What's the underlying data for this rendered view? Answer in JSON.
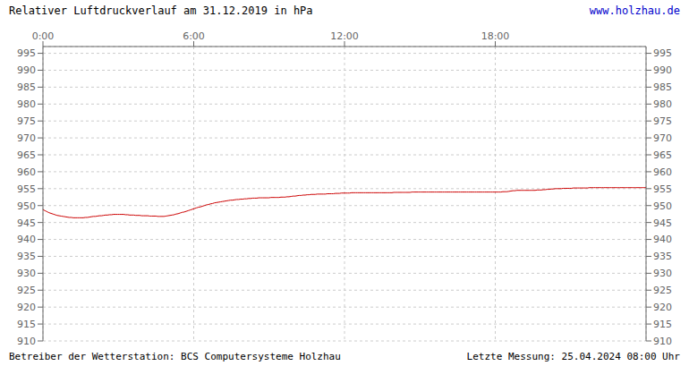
{
  "chart_data": {
    "type": "line",
    "title": "Relativer Luftdruckverlauf am 31.12.2019 in hPa",
    "annotations": [
      {
        "text": "www.holzhau.de",
        "color": "#0000cc"
      },
      {
        "text": "Betreiber der Wetterstation: BCS Computersysteme Holzhau"
      },
      {
        "text": "Letzte Messung: 25.04.2024 08:00 Uhr"
      }
    ],
    "color": "#cc0000",
    "grid": true,
    "xlim": [
      0,
      1440
    ],
    "xticks": [
      {
        "value": 0,
        "label": "0:00"
      },
      {
        "value": 360,
        "label": "6:00"
      },
      {
        "value": 720,
        "label": "12:00"
      },
      {
        "value": 1080,
        "label": "18:00"
      }
    ],
    "ylim": [
      910,
      997
    ],
    "yticks": [
      910,
      915,
      920,
      925,
      930,
      935,
      940,
      945,
      950,
      955,
      960,
      965,
      970,
      975,
      980,
      985,
      990,
      995
    ],
    "y2lim": [
      910,
      997
    ],
    "y2ticks": [
      910,
      915,
      920,
      925,
      930,
      935,
      940,
      945,
      950,
      955,
      960,
      965,
      970,
      975,
      980,
      985,
      990,
      995
    ],
    "x": [
      0,
      4.82,
      9.63,
      14.45,
      19.26,
      24.08,
      28.9,
      33.71,
      38.53,
      43.34,
      48.16,
      52.98,
      57.79,
      62.61,
      67.42,
      72.24,
      77.06,
      81.87,
      86.69,
      91.51,
      96.32,
      101.14,
      105.95,
      110.77,
      115.59,
      120.4,
      125.22,
      130.03,
      134.85,
      139.67,
      144.48,
      149.3,
      154.11,
      158.93,
      163.75,
      168.56,
      173.38,
      178.19,
      183.01,
      187.83,
      192.64,
      197.46,
      202.27,
      207.09,
      211.91,
      216.72,
      221.54,
      226.35,
      231.17,
      235.99,
      240.8,
      245.62,
      250.43,
      255.25,
      260.07,
      264.88,
      269.7,
      274.52,
      279.33,
      284.15,
      288.96,
      293.78,
      298.6,
      303.41,
      308.23,
      313.04,
      317.86,
      322.68,
      327.49,
      332.31,
      337.12,
      341.94,
      346.76,
      351.57,
      356.39,
      361.2,
      366.02,
      370.84,
      375.65,
      380.47,
      385.28,
      390.1,
      394.92,
      399.73,
      404.55,
      409.36,
      414.18,
      419,
      423.81,
      428.63,
      433.44,
      438.26,
      443.08,
      447.89,
      452.71,
      457.53,
      462.34,
      467.16,
      471.97,
      476.79,
      481.61,
      486.42,
      491.24,
      496.05,
      500.87,
      505.69,
      510.5,
      515.32,
      520.13,
      524.95,
      529.77,
      534.58,
      539.4,
      544.21,
      549.03,
      553.85,
      558.66,
      563.48,
      568.29,
      573.11,
      577.93,
      582.74,
      587.56,
      592.37,
      597.19,
      602.01,
      606.82,
      611.64,
      616.45,
      621.27,
      626.09,
      630.9,
      635.72,
      640.54,
      645.35,
      650.17,
      654.98,
      659.8,
      664.62,
      669.43,
      674.25,
      679.06,
      683.88,
      688.7,
      693.51,
      698.33,
      703.14,
      707.96,
      712.78,
      717.59,
      722.41,
      727.22,
      732.04,
      736.86,
      741.67,
      746.49,
      751.3,
      756.12,
      760.94,
      765.75,
      770.57,
      775.38,
      780.2,
      785.02,
      789.83,
      794.65,
      799.46,
      804.28,
      809.1,
      813.91,
      818.73,
      823.55,
      828.36,
      833.18,
      837.99,
      842.81,
      847.63,
      852.44,
      857.26,
      862.07,
      866.89,
      871.71,
      876.52,
      881.34,
      886.15,
      890.97,
      895.79,
      900.6,
      905.42,
      910.23,
      915.05,
      919.87,
      924.68,
      929.5,
      934.31,
      939.13,
      943.95,
      948.76,
      953.58,
      958.39,
      963.21,
      968.03,
      972.84,
      977.66,
      982.47,
      987.29,
      992.11,
      996.92,
      1001.74,
      1006.56,
      1011.37,
      1016.19,
      1021,
      1025.82,
      1030.64,
      1035.45,
      1040.27,
      1045.08,
      1049.9,
      1054.72,
      1059.53,
      1064.35,
      1069.16,
      1073.98,
      1078.8,
      1083.61,
      1088.43,
      1093.24,
      1098.06,
      1102.88,
      1107.69,
      1112.51,
      1117.32,
      1122.14,
      1126.96,
      1131.77,
      1136.59,
      1141.4,
      1146.22,
      1151.04,
      1155.85,
      1160.67,
      1165.48,
      1170.3,
      1175.12,
      1179.93,
      1184.75,
      1189.57,
      1194.38,
      1199.2,
      1204.01,
      1208.83,
      1213.65,
      1218.46,
      1223.28,
      1228.09,
      1232.91,
      1237.73,
      1242.54,
      1247.36,
      1252.17,
      1256.99,
      1261.81,
      1266.62,
      1271.44,
      1276.25,
      1281.07,
      1285.89,
      1290.7,
      1295.52,
      1300.33,
      1305.15,
      1309.97,
      1314.78,
      1319.6,
      1324.41,
      1329.23,
      1334.05,
      1338.86,
      1343.68,
      1348.49,
      1353.31,
      1358.13,
      1362.94,
      1367.76,
      1372.58,
      1377.39,
      1382.21,
      1387.02,
      1391.84,
      1396.66,
      1401.47,
      1406.29,
      1411.1,
      1415.92,
      1420.74,
      1425.55,
      1430.37,
      1435.18,
      1440
    ],
    "values": [
      948.8,
      948.5,
      948.2,
      947.9,
      947.7,
      947.5,
      947.3,
      947.1,
      947.0,
      946.9,
      946.8,
      946.7,
      946.6,
      946.5,
      946.5,
      946.4,
      946.4,
      946.4,
      946.4,
      946.4,
      946.4,
      946.5,
      946.5,
      946.6,
      946.7,
      946.8,
      946.8,
      946.9,
      947.0,
      947.0,
      947.1,
      947.2,
      947.2,
      947.3,
      947.3,
      947.4,
      947.4,
      947.4,
      947.4,
      947.4,
      947.4,
      947.3,
      947.3,
      947.2,
      947.2,
      947.2,
      947.1,
      947.1,
      947.1,
      947.0,
      947.0,
      947.0,
      947.0,
      946.9,
      946.9,
      946.9,
      946.9,
      946.8,
      946.8,
      946.8,
      946.8,
      946.9,
      947.0,
      947.1,
      947.2,
      947.3,
      947.5,
      947.6,
      947.8,
      948.0,
      948.1,
      948.3,
      948.5,
      948.7,
      948.9,
      949.1,
      949.3,
      949.5,
      949.6,
      949.8,
      950.0,
      950.2,
      950.3,
      950.5,
      950.6,
      950.8,
      950.9,
      951.0,
      951.1,
      951.2,
      951.3,
      951.4,
      951.5,
      951.6,
      951.6,
      951.7,
      951.8,
      951.8,
      951.9,
      951.9,
      952.0,
      952.0,
      952.1,
      952.1,
      952.2,
      952.2,
      952.2,
      952.3,
      952.3,
      952.3,
      952.3,
      952.3,
      952.3,
      952.4,
      952.4,
      952.4,
      952.4,
      952.4,
      952.5,
      952.5,
      952.5,
      952.6,
      952.6,
      952.7,
      952.8,
      952.8,
      952.9,
      953.0,
      953.0,
      953.1,
      953.1,
      953.2,
      953.2,
      953.3,
      953.3,
      953.3,
      953.4,
      953.4,
      953.4,
      953.4,
      953.4,
      953.5,
      953.5,
      953.5,
      953.5,
      953.6,
      953.6,
      953.6,
      953.7,
      953.7,
      953.7,
      953.7,
      953.7,
      953.8,
      953.8,
      953.8,
      953.8,
      953.8,
      953.8,
      953.8,
      953.8,
      953.8,
      953.8,
      953.8,
      953.8,
      953.8,
      953.8,
      953.8,
      953.8,
      953.8,
      953.8,
      953.8,
      953.8,
      953.8,
      953.9,
      953.9,
      953.9,
      953.9,
      953.9,
      953.9,
      953.9,
      953.9,
      953.9,
      954.0,
      954.0,
      954.0,
      954.0,
      954.0,
      954.0,
      954.0,
      954.0,
      954.0,
      954.0,
      954.0,
      954.0,
      954.0,
      954.0,
      954.0,
      954.0,
      954.0,
      954.0,
      954.0,
      954.0,
      954.0,
      954.0,
      954.0,
      954.0,
      954.0,
      954.0,
      954.0,
      954.0,
      954.0,
      954.0,
      954.0,
      954.0,
      954.0,
      954.0,
      954.0,
      954.0,
      954.0,
      954.0,
      954.0,
      954.0,
      954.0,
      954.0,
      954.0,
      954.0,
      954.0,
      954.1,
      954.1,
      954.1,
      954.2,
      954.3,
      954.4,
      954.4,
      954.5,
      954.5,
      954.5,
      954.5,
      954.5,
      954.5,
      954.5,
      954.5,
      954.5,
      954.5,
      954.6,
      954.6,
      954.6,
      954.7,
      954.7,
      954.8,
      954.8,
      954.9,
      954.9,
      955.0,
      955.0,
      955.0,
      955.0,
      955.1,
      955.1,
      955.1,
      955.1,
      955.1,
      955.2,
      955.2,
      955.2,
      955.2,
      955.2,
      955.2,
      955.2,
      955.2,
      955.3,
      955.3,
      955.3,
      955.3,
      955.3,
      955.3,
      955.3,
      955.3,
      955.3,
      955.3,
      955.3,
      955.3,
      955.3,
      955.3,
      955.3,
      955.3,
      955.3,
      955.3,
      955.3,
      955.3,
      955.3,
      955.3,
      955.3,
      955.3,
      955.3,
      955.3,
      955.3,
      955.3,
      955.3
    ]
  }
}
